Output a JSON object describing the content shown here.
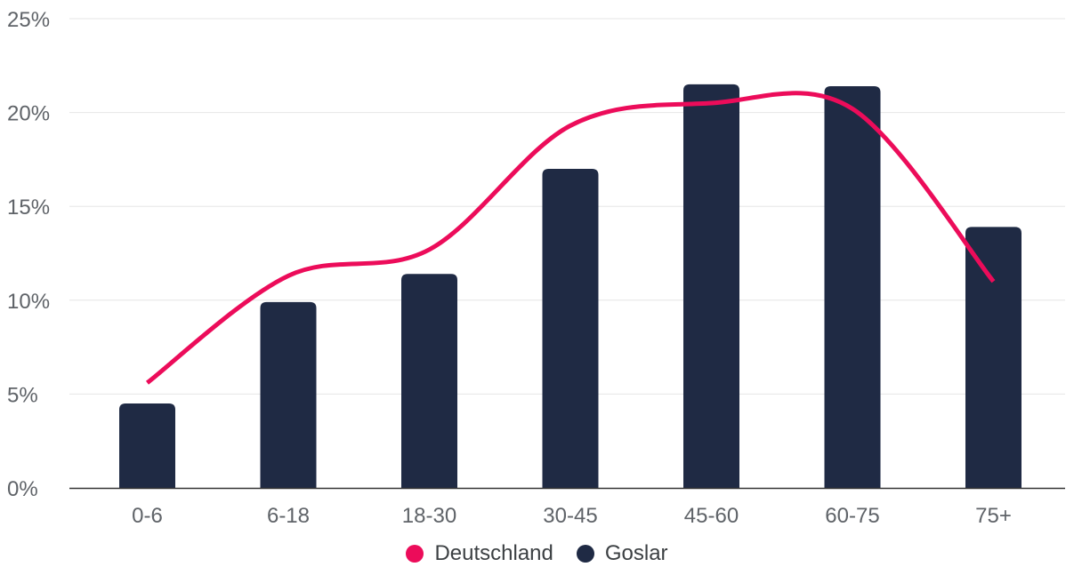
{
  "colors": {
    "Deutschland": "#ec0c5a",
    "Goslar": "#1f2a44",
    "grid": "#e6e6e6",
    "axis": "#333333"
  },
  "legend": {
    "items": [
      {
        "label": "Deutschland",
        "color": "#ec0c5a"
      },
      {
        "label": "Goslar",
        "color": "#1f2a44"
      }
    ]
  },
  "chart_data": {
    "type": "bar",
    "categories": [
      "0-6",
      "6-18",
      "18-30",
      "30-45",
      "45-60",
      "60-75",
      "75+"
    ],
    "series": [
      {
        "name": "Goslar",
        "type": "bar",
        "values": [
          4.5,
          9.9,
          11.4,
          17.0,
          21.5,
          21.4,
          13.9
        ]
      },
      {
        "name": "Deutschland",
        "type": "line",
        "smooth": true,
        "values": [
          5.6,
          11.3,
          12.7,
          19.3,
          20.5,
          20.2,
          11.0
        ]
      }
    ],
    "ylim": [
      0,
      25
    ],
    "yticks": [
      "0%",
      "5%",
      "10%",
      "15%",
      "20%",
      "25%"
    ],
    "ytick_values": [
      0,
      5,
      10,
      15,
      20,
      25
    ],
    "grid": true,
    "legend_position": "bottom-center"
  }
}
